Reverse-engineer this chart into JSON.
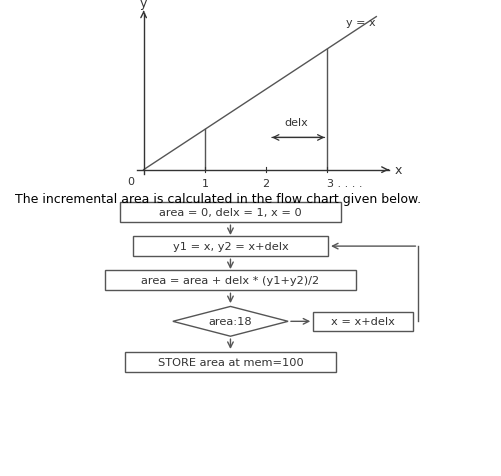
{
  "bg_color": "#ffffff",
  "text_color": "#000000",
  "graph": {
    "x_label": "x",
    "y_label": "y",
    "line_label": "y = x",
    "delx_label": "delx",
    "tick_suffix": "3 . . . ."
  },
  "flowchart": {
    "box1_text": "area = 0, delx = 1, x = 0",
    "box2_text": "y1 = x, y2 = x+delx",
    "box3_text": "area = area + delx * (y1+y2)/2",
    "diamond_text": "area:18",
    "side_box_text": "x = x+delx",
    "end_box_text": "STORE area at mem=100"
  },
  "caption": "The incremental area is calculated in the flow chart given below."
}
